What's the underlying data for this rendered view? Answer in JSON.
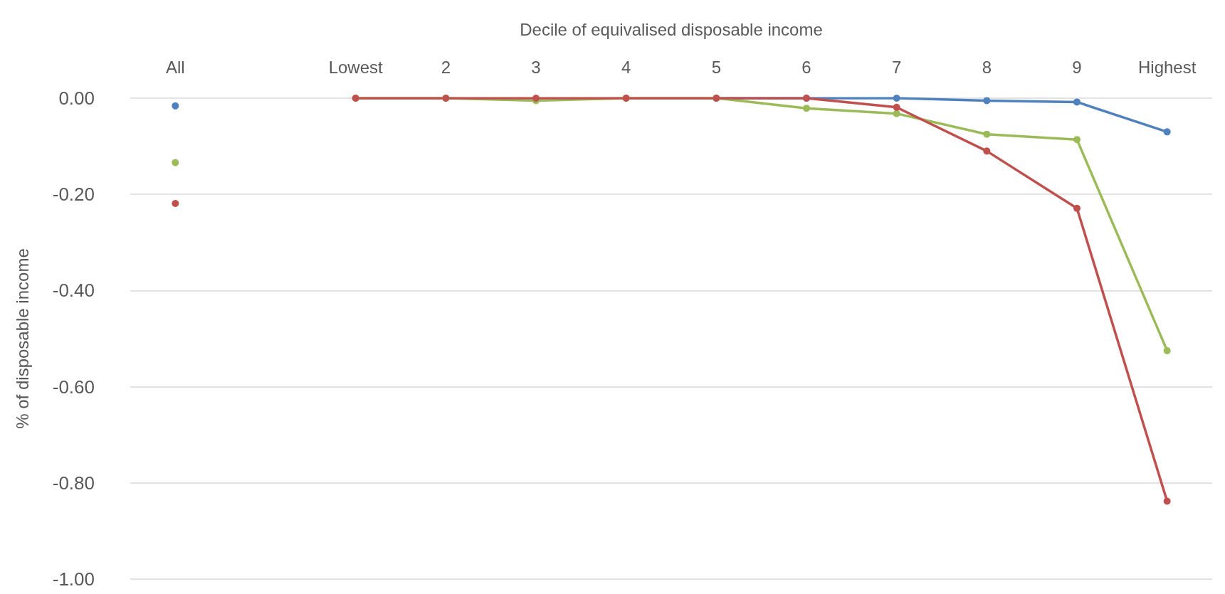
{
  "chart_data": {
    "type": "line",
    "xlabel": "Decile of equivalised disposable income",
    "ylabel": "% of disposable income",
    "categories": [
      "All",
      null,
      "Lowest",
      "2",
      "3",
      "4",
      "5",
      "6",
      "7",
      "8",
      "9",
      "Highest"
    ],
    "series": [
      {
        "color": "#4f81bd",
        "values": [
          -0.016,
          null,
          null,
          null,
          null,
          null,
          0,
          0,
          0,
          -0.005,
          -0.008,
          -0.07
        ]
      },
      {
        "color": "#9bbb59",
        "values": [
          -0.134,
          null,
          0,
          0,
          -0.005,
          0,
          0,
          -0.021,
          -0.032,
          -0.075,
          -0.086,
          -0.525
        ]
      },
      {
        "color": "#c0504d",
        "values": [
          -0.219,
          null,
          0,
          0,
          0,
          0,
          0,
          0,
          -0.019,
          -0.11,
          -0.229,
          -0.838
        ]
      }
    ],
    "ylim": [
      -1,
      0
    ],
    "yticks": [
      {
        "value": 0,
        "label": "0.00"
      },
      {
        "value": -0.2,
        "label": "-0.20"
      },
      {
        "value": -0.4,
        "label": "-0.40"
      },
      {
        "value": -0.6,
        "label": "-0.60"
      },
      {
        "value": -0.8,
        "label": "-0.80"
      },
      {
        "value": -1,
        "label": "-1.00"
      }
    ],
    "grid": "y",
    "marker": "circle",
    "line_style": "solid"
  }
}
